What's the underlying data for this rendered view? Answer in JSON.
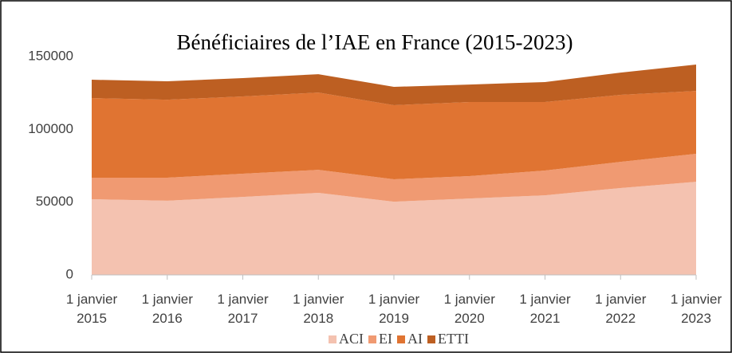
{
  "chart_data": {
    "type": "stacked_area",
    "title": "Bénéficiaires de l’IAE en France (2015-2023)",
    "categories": [
      "1 janvier 2015",
      "1 janvier 2016",
      "1 janvier 2017",
      "1 janvier 2018",
      "1 janvier 2019",
      "1 janvier 2020",
      "1 janvier 2021",
      "1 janvier 2022",
      "1 janvier 2023"
    ],
    "series": [
      {
        "name": "ACI",
        "color": "#f4c2b0",
        "values": [
          52000,
          51000,
          53600,
          56400,
          50300,
          52500,
          54700,
          59700,
          64000
        ]
      },
      {
        "name": "EI",
        "color": "#f09a72",
        "values": [
          14800,
          15800,
          15900,
          15800,
          15400,
          15400,
          17000,
          18000,
          19200
        ]
      },
      {
        "name": "AI",
        "color": "#e07432",
        "values": [
          54700,
          53600,
          53100,
          53100,
          50900,
          50900,
          47100,
          46000,
          43200
        ]
      },
      {
        "name": "ETTI",
        "color": "#bd5f22",
        "values": [
          12600,
          12600,
          12600,
          12600,
          12600,
          12000,
          13700,
          15300,
          18100
        ]
      }
    ],
    "ylim": [
      0,
      150000
    ],
    "yticks": [
      0,
      50000,
      100000,
      150000
    ],
    "grid": false,
    "legend": "bottom"
  }
}
